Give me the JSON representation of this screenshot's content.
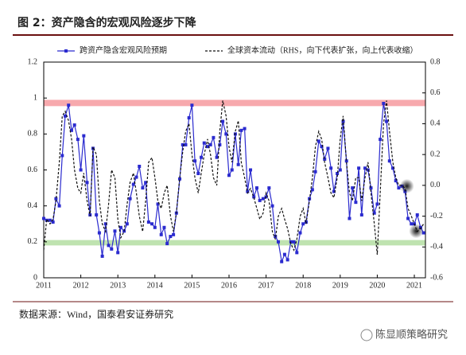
{
  "chart_data": {
    "type": "line",
    "title": "图 2：资产隐含的宏观风险逐步下降",
    "source": "数据来源：Wind，国泰君安证券研究",
    "watermark": "陈显顺策略研究",
    "xlim": [
      2011,
      2021.3
    ],
    "xticks": [
      2011,
      2012,
      2013,
      2014,
      2015,
      2016,
      2017,
      2018,
      2019,
      2020,
      2021
    ],
    "ylim": [
      0,
      1.2
    ],
    "yticks": [
      0,
      0.2,
      0.4,
      0.6,
      0.8,
      1,
      1.2
    ],
    "y2lim": [
      -0.6,
      0.8
    ],
    "y2ticks": [
      -0.6,
      -0.4,
      -0.2,
      {
        "value": 0,
        "label": "0.0"
      },
      0.2,
      0.4,
      0.6,
      0.8
    ],
    "bands": [
      {
        "range": [
          0.955,
          0.99
        ],
        "color": "#f7a9ad"
      },
      {
        "range": [
          0.18,
          0.21
        ],
        "color": "#bfe3b0"
      }
    ],
    "highlights": [
      {
        "x": 2020.8,
        "y": 0.51,
        "color": "#f25a5a"
      },
      {
        "x": 2021.05,
        "y": 0.26,
        "color": "#3cc26a"
      }
    ],
    "x": [
      2011,
      2011.08,
      2011.17,
      2011.25,
      2011.33,
      2011.42,
      2011.5,
      2011.58,
      2011.67,
      2011.75,
      2011.83,
      2011.92,
      2012,
      2012.08,
      2012.17,
      2012.25,
      2012.33,
      2012.42,
      2012.5,
      2012.58,
      2012.67,
      2012.75,
      2012.83,
      2012.92,
      2013,
      2013.08,
      2013.17,
      2013.25,
      2013.33,
      2013.42,
      2013.5,
      2013.58,
      2013.67,
      2013.75,
      2013.83,
      2013.92,
      2014,
      2014.08,
      2014.17,
      2014.25,
      2014.33,
      2014.42,
      2014.5,
      2014.58,
      2014.67,
      2014.75,
      2014.83,
      2014.92,
      2015,
      2015.08,
      2015.17,
      2015.25,
      2015.33,
      2015.42,
      2015.5,
      2015.58,
      2015.67,
      2015.75,
      2015.83,
      2015.92,
      2016,
      2016.08,
      2016.17,
      2016.25,
      2016.33,
      2016.42,
      2016.5,
      2016.58,
      2016.67,
      2016.75,
      2016.83,
      2016.92,
      2017,
      2017.08,
      2017.17,
      2017.25,
      2017.33,
      2017.42,
      2017.5,
      2017.58,
      2017.67,
      2017.75,
      2017.83,
      2017.92,
      2018,
      2018.08,
      2018.17,
      2018.25,
      2018.33,
      2018.42,
      2018.5,
      2018.58,
      2018.67,
      2018.75,
      2018.83,
      2018.92,
      2019,
      2019.08,
      2019.17,
      2019.25,
      2019.33,
      2019.42,
      2019.5,
      2019.58,
      2019.67,
      2019.75,
      2019.83,
      2019.92,
      2020,
      2020.08,
      2020.17,
      2020.25,
      2020.33,
      2020.42,
      2020.5,
      2020.58,
      2020.67,
      2020.75,
      2020.83,
      2020.92,
      2021,
      2021.08,
      2021.17,
      2021.25
    ],
    "series": [
      {
        "name": "跨资产隐含宏观风险预期",
        "color": "#2b2bcf",
        "marker": true,
        "values": [
          0.33,
          0.32,
          0.32,
          0.31,
          0.44,
          0.4,
          0.68,
          0.9,
          0.96,
          0.82,
          0.85,
          0.77,
          0.6,
          0.79,
          0.53,
          0.35,
          0.72,
          0.35,
          0.25,
          0.12,
          0.3,
          0.18,
          0.16,
          0.26,
          0.14,
          0.28,
          0.26,
          0.3,
          0.44,
          0.52,
          0.56,
          0.62,
          0.5,
          0.53,
          0.31,
          0.3,
          0.28,
          0.41,
          0.24,
          0.28,
          0.19,
          0.23,
          0.24,
          0.36,
          0.55,
          0.74,
          0.74,
          0.89,
          0.96,
          0.65,
          0.58,
          0.67,
          0.75,
          0.73,
          0.74,
          0.78,
          0.67,
          0.74,
          0.87,
          0.8,
          0.57,
          0.6,
          0.8,
          0.63,
          0.82,
          0.83,
          0.48,
          0.6,
          0.45,
          0.5,
          0.43,
          0.44,
          0.45,
          0.5,
          0.4,
          0.23,
          0.2,
          0.09,
          0.13,
          0.1,
          0.2,
          0.2,
          0.14,
          0.25,
          0.3,
          0.31,
          0.44,
          0.49,
          0.59,
          0.76,
          0.73,
          0.66,
          0.72,
          0.61,
          0.48,
          0.58,
          0.6,
          0.87,
          0.65,
          0.33,
          0.5,
          0.42,
          0.61,
          0.35,
          0.61,
          0.6,
          0.5,
          0.36,
          0.41,
          0.77,
          0.97,
          0.87,
          0.65,
          0.61,
          0.54,
          0.5,
          0.51,
          0.48,
          0.33,
          0.3,
          0.3,
          0.35,
          0.28,
          0.25
        ]
      },
      {
        "name": "全球资本流动（RHS，向下代表扩张，向上代表收缩）",
        "color": "#111111",
        "dashed": true,
        "axis": "y2",
        "values": [
          -0.42,
          -0.22,
          -0.25,
          -0.22,
          -0.1,
          0.15,
          0.45,
          0.48,
          0.42,
          0.3,
          0.1,
          -0.02,
          -0.05,
          0.08,
          -0.1,
          -0.2,
          0.25,
          0.2,
          -0.1,
          -0.25,
          -0.3,
          -0.12,
          0.1,
          0.05,
          -0.22,
          -0.34,
          -0.3,
          -0.12,
          0.02,
          0.08,
          -0.05,
          -0.2,
          -0.3,
          -0.1,
          0.15,
          0.18,
          0.05,
          -0.1,
          -0.15,
          -0.05,
          0.0,
          -0.2,
          -0.3,
          -0.18,
          0.05,
          0.22,
          0.35,
          0.4,
          0.2,
          0.05,
          -0.05,
          0.08,
          0.2,
          0.3,
          0.2,
          0.05,
          0.0,
          0.35,
          0.55,
          0.45,
          0.25,
          0.15,
          0.35,
          0.42,
          0.15,
          0.05,
          -0.05,
          -0.02,
          -0.08,
          -0.15,
          -0.22,
          -0.18,
          -0.05,
          -0.1,
          -0.3,
          -0.35,
          -0.2,
          -0.15,
          -0.22,
          -0.28,
          -0.38,
          -0.42,
          -0.35,
          -0.2,
          -0.15,
          -0.25,
          -0.1,
          0.05,
          0.25,
          0.35,
          0.3,
          0.15,
          0.05,
          -0.05,
          -0.08,
          0.05,
          0.3,
          0.45,
          0.15,
          -0.05,
          -0.1,
          0.05,
          0.05,
          -0.1,
          0.05,
          0.15,
          -0.05,
          -0.25,
          -0.45,
          -0.05,
          0.4,
          0.55,
          0.35,
          0.15,
          0.05,
          0.0,
          0.0,
          -0.02,
          -0.15,
          -0.2,
          -0.25,
          -0.3,
          -0.28,
          -0.25
        ]
      }
    ]
  }
}
